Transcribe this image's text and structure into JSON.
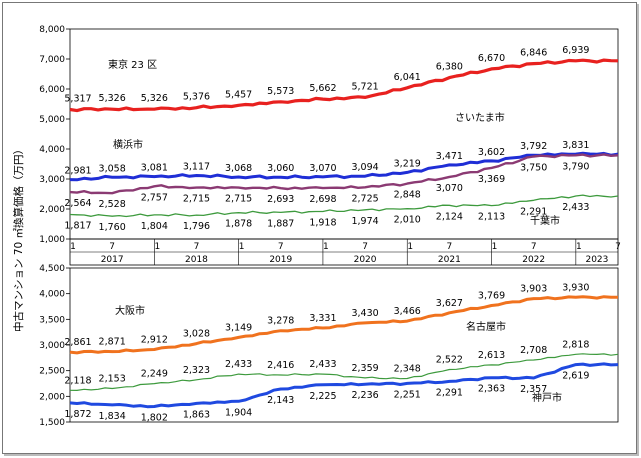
{
  "y_axis_label": "中古マンション 70 ㎡換算価格（万円）",
  "chart_data": [
    {
      "type": "line",
      "ylim": [
        1000,
        8000
      ],
      "yticks": [
        "1,000",
        "2,000",
        "3,000",
        "4,000",
        "5,000",
        "6,000",
        "7,000",
        "8,000"
      ],
      "x_month_labels": [
        "1",
        "7",
        "1",
        "7",
        "1",
        "7",
        "1",
        "7",
        "1",
        "7",
        "1",
        "7",
        "1",
        "7"
      ],
      "x_year_labels": [
        "2017",
        "2018",
        "2019",
        "2020",
        "2021",
        "2022",
        "2023"
      ],
      "series": [
        {
          "name": "東京 23 区",
          "color": "#e8211f",
          "labels": [
            "5,317",
            "5,326",
            "5,326",
            "5,376",
            "5,457",
            "5,573",
            "5,662",
            "5,721",
            "6,041",
            "6,380",
            "6,670",
            "6,846",
            "6,939"
          ],
          "values": [
            5317,
            5326,
            5326,
            5376,
            5457,
            5573,
            5662,
            5721,
            6041,
            6380,
            6670,
            6846,
            6939
          ]
        },
        {
          "name": "横浜市",
          "color": "#1f2ed6",
          "labels": [
            "2,981",
            "3,058",
            "3,081",
            "3,117",
            "3,068",
            "3,060",
            "3,070",
            "3,094",
            "3,219",
            "3,471",
            "3,602",
            "3,792",
            "3,831"
          ],
          "values": [
            2981,
            3058,
            3081,
            3117,
            3068,
            3060,
            3070,
            3094,
            3219,
            3471,
            3602,
            3792,
            3831
          ]
        },
        {
          "name": "さいたま市",
          "color": "#8b3a73",
          "labels": [
            "2,564",
            "2,528",
            "2,757",
            "2,715",
            "2,715",
            "2,693",
            "2,698",
            "2,725",
            "2,848",
            "3,070",
            "3,369",
            "3,750",
            "3,790"
          ],
          "values": [
            2564,
            2528,
            2757,
            2715,
            2715,
            2693,
            2698,
            2725,
            2848,
            3070,
            3369,
            3750,
            3790
          ]
        },
        {
          "name": "千葉市",
          "color": "#3d9a3d",
          "labels": [
            "1,817",
            "1,760",
            "1,804",
            "1,796",
            "1,878",
            "1,887",
            "1,918",
            "1,974",
            "2,010",
            "2,124",
            "2,113",
            "2,291",
            "2,433"
          ],
          "values": [
            1817,
            1760,
            1804,
            1796,
            1878,
            1887,
            1918,
            1974,
            2010,
            2124,
            2113,
            2291,
            2433
          ]
        }
      ]
    },
    {
      "type": "line",
      "ylim": [
        1500,
        4500
      ],
      "yticks": [
        "1,500",
        "2,000",
        "2,500",
        "3,000",
        "3,500",
        "4,000",
        "4,500"
      ],
      "series": [
        {
          "name": "大阪市",
          "color": "#f0721e",
          "labels": [
            "2,861",
            "2,871",
            "2,912",
            "3,028",
            "3,149",
            "3,278",
            "3,331",
            "3,430",
            "3,466",
            "3,627",
            "3,769",
            "3,903",
            "3,930"
          ],
          "values": [
            2861,
            2871,
            2912,
            3028,
            3149,
            3278,
            3331,
            3430,
            3466,
            3627,
            3769,
            3903,
            3930
          ]
        },
        {
          "name": "名古屋市",
          "color": "#3d9a3d",
          "labels": [
            "2,118",
            "2,153",
            "2,249",
            "2,323",
            "2,433",
            "2,416",
            "2,433",
            "2,359",
            "2,348",
            "2,522",
            "2,613",
            "2,708",
            "2,818"
          ],
          "values": [
            2118,
            2153,
            2249,
            2323,
            2433,
            2416,
            2433,
            2359,
            2348,
            2522,
            2613,
            2708,
            2818
          ]
        },
        {
          "name": "神戸市",
          "color": "#1f49e0",
          "labels": [
            "1,872",
            "1,834",
            "1,802",
            "1,863",
            "1,904",
            "2,143",
            "2,225",
            "2,236",
            "2,251",
            "2,291",
            "2,363",
            "2,357",
            "2,619"
          ],
          "values": [
            1872,
            1834,
            1802,
            1863,
            1904,
            2143,
            2225,
            2236,
            2251,
            2291,
            2363,
            2357,
            2619
          ]
        }
      ]
    }
  ]
}
